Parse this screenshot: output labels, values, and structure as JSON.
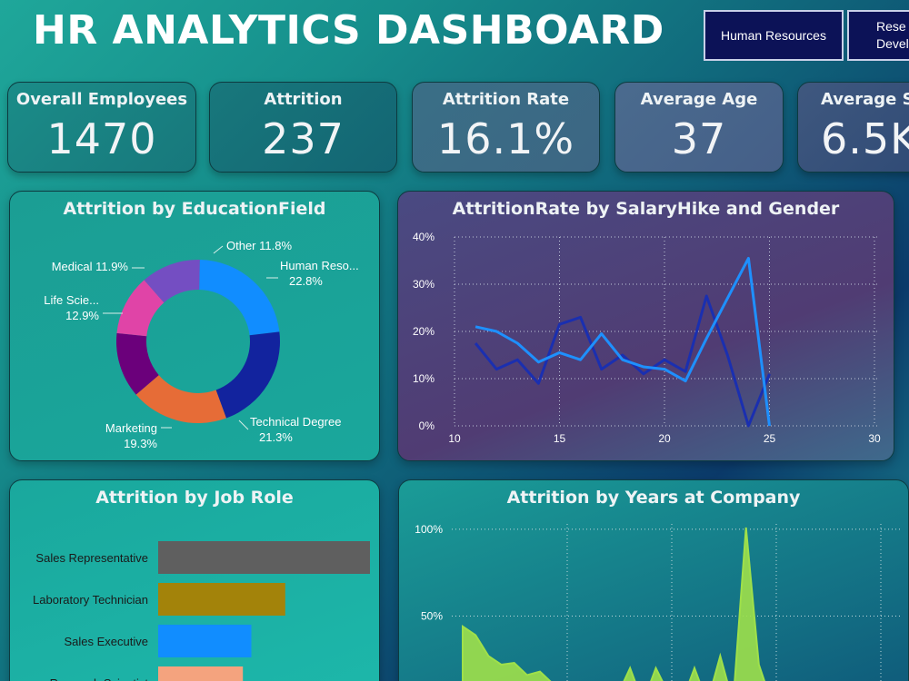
{
  "header": {
    "title": "HR ANALYTICS DASHBOARD",
    "departments": [
      {
        "label": "Human Resources"
      },
      {
        "label_line1": "Rese",
        "label_line2": "Devel"
      }
    ]
  },
  "kpis": [
    {
      "label": "Overall Employees",
      "value": "1470"
    },
    {
      "label": "Attrition",
      "value": "237"
    },
    {
      "label": "Attrition Rate",
      "value": "16.1%"
    },
    {
      "label": "Average Age",
      "value": "37"
    },
    {
      "label": "Average Sa",
      "value": "6.5K"
    }
  ],
  "colors": {
    "donut": [
      "#118dff",
      "#12239e",
      "#e66c37",
      "#6b007b",
      "#e044a7",
      "#744ec2"
    ],
    "line_dark": "#1a2fb0",
    "line_light": "#1e90ff",
    "area": "#9fe04a",
    "bars": [
      "#5f5f5f",
      "#a3830a",
      "#118dff",
      "#f4a37e"
    ]
  },
  "chart_data": [
    {
      "type": "pie",
      "title": "Attrition by EducationField",
      "labels": [
        "Human Reso...",
        "Technical Degree",
        "Marketing",
        "Life Scie...",
        "Medical",
        "Other"
      ],
      "values": [
        22.8,
        21.3,
        19.3,
        12.9,
        11.9,
        11.8
      ],
      "value_labels": [
        "22.8%",
        "21.3%",
        "19.3%",
        "12.9%",
        "11.9%",
        "11.8%"
      ]
    },
    {
      "type": "line",
      "title": "AttritionRate by SalaryHike and Gender",
      "xlim": [
        10,
        30
      ],
      "ylim": [
        0,
        40
      ],
      "x_ticks": [
        "10",
        "15",
        "20",
        "25",
        "30"
      ],
      "y_ticks": [
        "0%",
        "10%",
        "20%",
        "30%",
        "40%"
      ],
      "grid": true,
      "series": [
        {
          "x": [
            11,
            12,
            13,
            14,
            15,
            16,
            17,
            18,
            19,
            20,
            21,
            22,
            23,
            24,
            25
          ],
          "y": [
            17.5,
            12,
            14,
            9,
            21.5,
            23,
            12,
            15,
            11,
            14,
            11.5,
            27.5,
            15,
            0,
            11
          ]
        },
        {
          "x": [
            11,
            12,
            13,
            14,
            15,
            16,
            17,
            18,
            19,
            20,
            21,
            22,
            23,
            24,
            25
          ],
          "y": [
            21,
            20,
            17.5,
            13.5,
            15.5,
            14,
            19.5,
            14,
            12.5,
            12,
            9.5,
            18.5,
            27,
            35.5,
            0
          ]
        }
      ]
    },
    {
      "type": "bar",
      "title": "Attrition by Job Role",
      "categories": [
        "Sales Representative",
        "Laboratory Technician",
        "Sales Executive",
        "Research Scientist"
      ],
      "values": [
        100,
        60,
        44,
        40
      ]
    },
    {
      "type": "area",
      "title": "Attrition by Years at Company",
      "ylim": [
        0,
        100
      ],
      "y_ticks": [
        "50%",
        "100%"
      ],
      "grid": true,
      "x": [
        0,
        1,
        2,
        3,
        4,
        5,
        6,
        7,
        8,
        9,
        10,
        11,
        12,
        13,
        14,
        15,
        16,
        17,
        18,
        19,
        20,
        21,
        22,
        23,
        24
      ],
      "values": [
        44,
        39,
        27,
        22,
        23,
        16,
        18,
        11,
        10,
        7,
        5,
        10,
        4,
        20,
        0,
        20,
        5,
        0,
        20,
        0,
        27,
        0,
        101,
        22,
        0
      ]
    }
  ]
}
